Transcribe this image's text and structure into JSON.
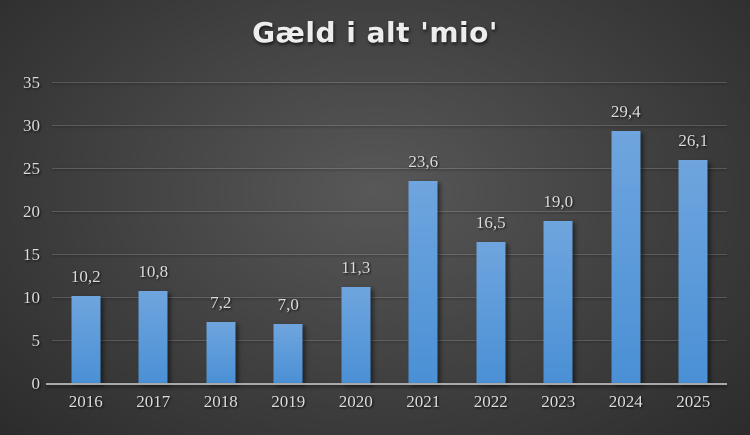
{
  "chart_data": {
    "type": "bar",
    "title": "Gæld i alt 'mio'",
    "categories": [
      "2016",
      "2017",
      "2018",
      "2019",
      "2020",
      "2021",
      "2022",
      "2023",
      "2024",
      "2025"
    ],
    "values": [
      10.2,
      10.8,
      7.2,
      7.0,
      11.3,
      23.6,
      16.5,
      19.0,
      29.4,
      26.1
    ],
    "value_labels": [
      "10,2",
      "10,8",
      "7,2",
      "7,0",
      "11,3",
      "23,6",
      "16,5",
      "19,0",
      "29,4",
      "26,1"
    ],
    "xlabel": "",
    "ylabel": "",
    "ylim": [
      0,
      35
    ],
    "yticks": [
      0,
      5,
      10,
      15,
      20,
      25,
      30,
      35
    ],
    "ytick_labels": [
      "0",
      "5",
      "10",
      "15",
      "20",
      "25",
      "30",
      "35"
    ],
    "grid": true,
    "legend": "none",
    "decimal_separator": ",",
    "colors": {
      "bar_top": "#6FA5DE",
      "bar_bottom": "#4A90D5",
      "background_center": "#585858",
      "background_edge": "#232323",
      "gridline": "rgba(255,255,255,0.16)",
      "axis_line": "#A9A9A9",
      "label_text": "#DCDCDC",
      "title_text": "#EDEDED"
    }
  }
}
